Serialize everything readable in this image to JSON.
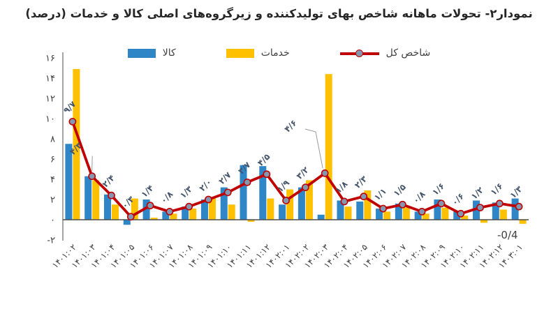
{
  "title": "نمودار۲- تحولات ماهانه شاخص بهای تولیدکننده و زیرگروه‌های اصلی کالا و خدمات (درصد)",
  "legend": [
    {
      "label": "کالا",
      "color": "#2E86C7",
      "type": "bar"
    },
    {
      "label": "خدمات",
      "color": "#FFC000",
      "type": "bar"
    },
    {
      "label": "شاخص کل",
      "color": "#C00000",
      "marker_fill": "#8497B0",
      "type": "line"
    }
  ],
  "chart_data": {
    "type": "bar+line",
    "title": "نمودار۲- تحولات ماهانه شاخص بهای تولیدکننده و زیرگروه‌های اصلی کالا و خدمات (درصد)",
    "categories": [
      "۱۴۰۱:۰۲",
      "۱۴۰۱:۰۳",
      "۱۴۰۱:۰۴",
      "۱۴۰۱:۰۵",
      "۱۴۰۱:۰۶",
      "۱۴۰۱:۰۷",
      "۱۴۰۱:۰۸",
      "۱۴۰۱:۰۹",
      "۱۴۰۱:۱۰",
      "۱۴۰۱:۱۱",
      "۱۴۰۱:۱۲",
      "۱۴۰۲:۰۱",
      "۱۴۰۲:۰۲",
      "۱۴۰۲:۰۳",
      "۱۴۰۲:۰۴",
      "۱۴۰۲:۰۵",
      "۱۴۰۲:۰۶",
      "۱۴۰۲:۰۷",
      "۱۴۰۲:۰۸",
      "۱۴۰۲:۰۹",
      "۱۴۰۲:۱۰",
      "۱۴۰۲:۱۱",
      "۱۴۰۲:۱۲",
      "۱۴۰۳:۰۱"
    ],
    "series": [
      {
        "name": "کالا",
        "type": "bar",
        "color": "#2E86C7",
        "values": [
          7.5,
          4.3,
          2.5,
          -0.5,
          2.0,
          0.8,
          1.3,
          2.0,
          3.2,
          5.4,
          5.3,
          1.5,
          3.2,
          0.5,
          1.9,
          1.8,
          1.1,
          1.6,
          0.8,
          2.0,
          0.8,
          1.9,
          1.7,
          2.1
        ]
      },
      {
        "name": "خدمات",
        "type": "bar",
        "color": "#FFC000",
        "values": [
          14.9,
          3.9,
          1.5,
          2.1,
          0.2,
          0.6,
          1.1,
          2.2,
          1.5,
          -0.2,
          2.1,
          3.0,
          3.9,
          14.4,
          1.3,
          2.9,
          0.8,
          1.2,
          0.6,
          1.2,
          0.4,
          -0.3,
          1.0,
          -0.4
        ]
      },
      {
        "name": "شاخص کل",
        "type": "line",
        "color": "#C00000",
        "marker_fill": "#8497B0",
        "values": [
          9.7,
          4.3,
          2.4,
          0.3,
          1.4,
          0.8,
          1.3,
          2.0,
          2.7,
          3.7,
          4.5,
          1.9,
          3.2,
          4.6,
          1.8,
          2.3,
          1.1,
          1.5,
          0.8,
          1.6,
          0.6,
          1.2,
          1.6,
          1.3
        ],
        "labels": [
          "۹/۷",
          "۴/۳",
          "۲/۴",
          "۰/۳",
          "۱/۴",
          "۰/۸",
          "۱/۳",
          "۲/۰",
          "۲/۷",
          "۳/۷",
          "۴/۵",
          "۱/۹",
          "۳/۲",
          "۴/۶",
          "۱/۸",
          "۲/۳",
          "۱/۱",
          "۱/۵",
          "۰/۸",
          "۱/۶",
          "۰/۶",
          "۱/۲",
          "۱/۶",
          "۱/۳"
        ]
      }
    ],
    "ylim": [
      -2,
      16
    ],
    "ytick_step": 2,
    "yticks": {
      "values": [
        16,
        14,
        12,
        10,
        8,
        6,
        4,
        2,
        0,
        -2
      ],
      "labels": [
        "۱۶",
        "۱۴",
        "۱۲",
        "۱۰",
        "۸",
        "۶",
        "۴",
        "۲",
        "۰",
        "-۲"
      ]
    },
    "grid": false,
    "legend_position": "top",
    "xlabel": "",
    "ylabel": "",
    "callout_indices": [
      1,
      13
    ],
    "annotations": [
      {
        "text": "-0/4",
        "refers_to_series": "خدمات",
        "refers_to_category": "۱۴۰۳:۰۱",
        "value": -0.4
      }
    ]
  }
}
